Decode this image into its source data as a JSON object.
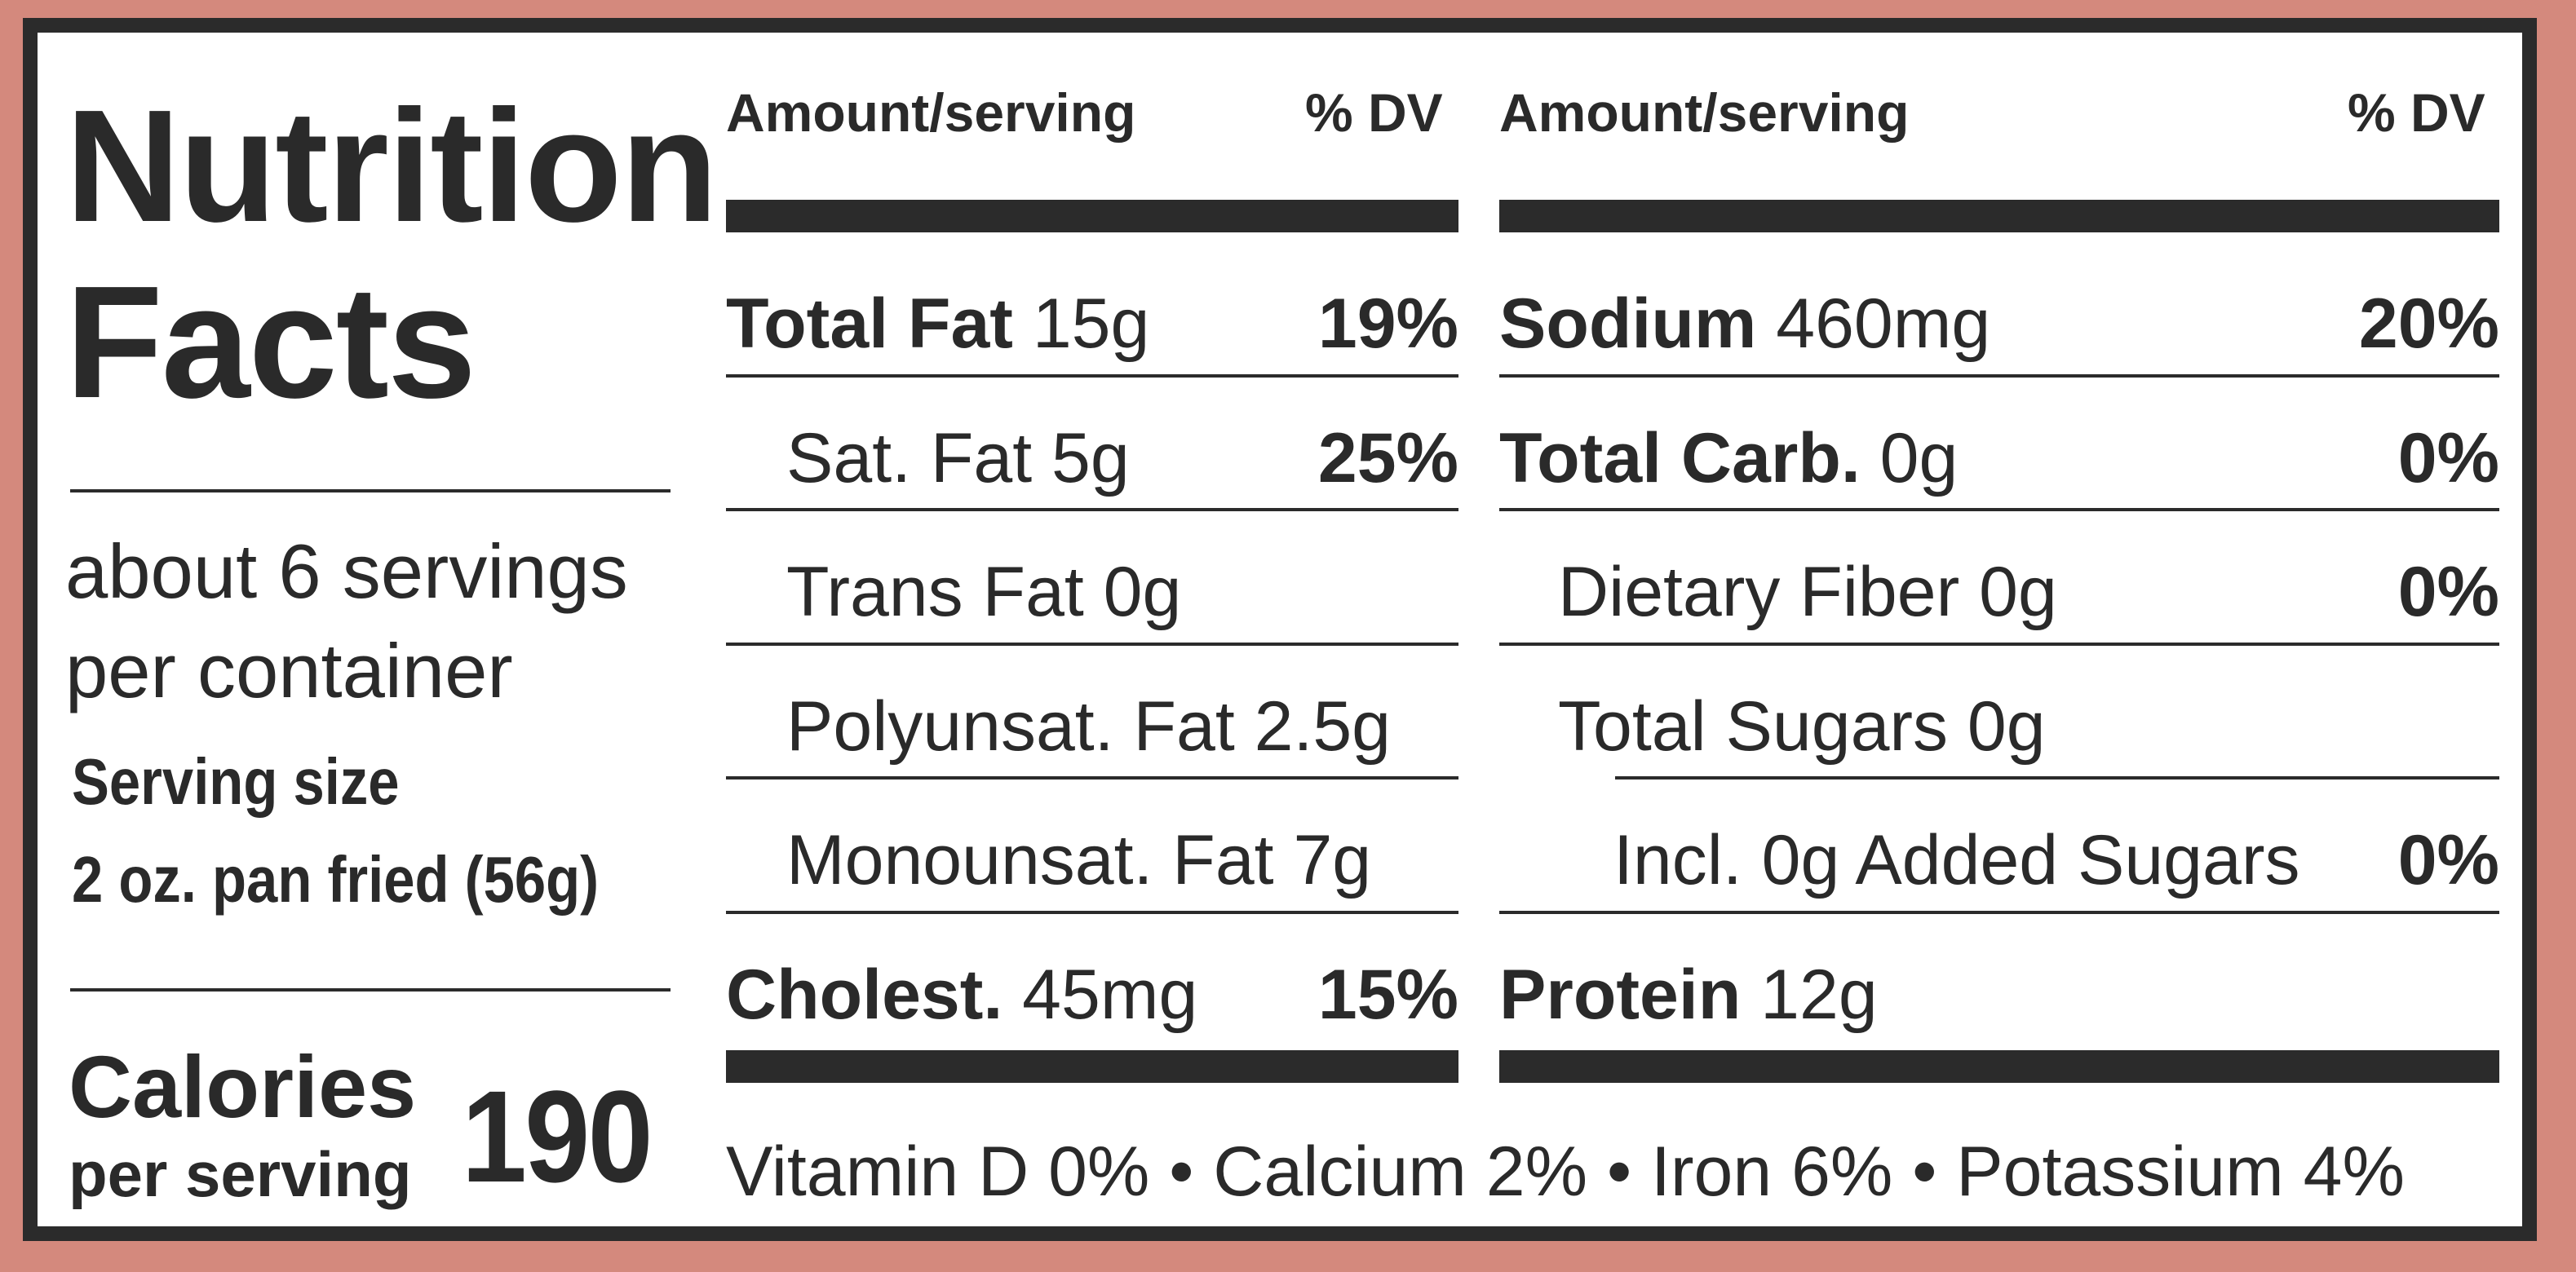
{
  "label": {
    "title_line1": "Nutrition",
    "title_line2": "Facts",
    "servings_line1": "about 6 servings",
    "servings_line2": "per container",
    "serving_size_label": "Serving size",
    "serving_size_value": "2 oz. pan fried (56g)",
    "calories_label": "Calories",
    "calories_sub": "per serving",
    "calories_value": "190"
  },
  "left_table": {
    "header_amount": "Amount/serving",
    "header_dv": "% DV",
    "rows": [
      {
        "name": "Total Fat",
        "amount": "15g",
        "dv": "19%"
      },
      {
        "name": "Sat. Fat 5g",
        "dv": "25%"
      },
      {
        "name": "Trans Fat 0g",
        "dv": ""
      },
      {
        "name": "Polyunsat. Fat 2.5g",
        "dv": ""
      },
      {
        "name": "Monounsat. Fat 7g",
        "dv": ""
      },
      {
        "name": "Cholest.",
        "amount": "45mg",
        "dv": "15%"
      }
    ]
  },
  "right_table": {
    "header_amount": "Amount/serving",
    "header_dv": "% DV",
    "rows": [
      {
        "name": "Sodium",
        "amount": "460mg",
        "dv": "20%"
      },
      {
        "name": "Total Carb.",
        "amount": "0g",
        "dv": "0%"
      },
      {
        "name": "Dietary Fiber 0g",
        "dv": "0%"
      },
      {
        "name": "Total Sugars 0g",
        "dv": ""
      },
      {
        "name": "Incl. 0g Added Sugars",
        "dv": "0%"
      },
      {
        "name": "Protein",
        "amount": "12g",
        "dv": ""
      }
    ]
  },
  "footer": {
    "vitamins": "Vitamin D 0% • Calcium 2% • Iron 6% • Potassium 4%"
  },
  "colors": {
    "background": "#d4897d",
    "border": "#2b2b2b",
    "panel": "#ffffff",
    "text": "#2a2a2a"
  }
}
